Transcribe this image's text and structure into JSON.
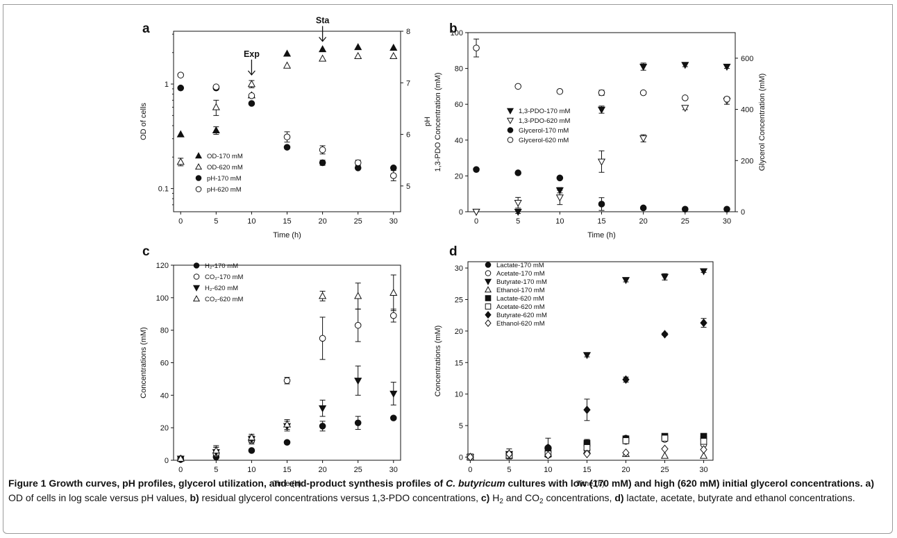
{
  "caption": {
    "title_prefix": "Figure 1 Growth curves, pH profiles, glycerol utilization, and end-product synthesis profiles of ",
    "organism": "C. butyricum",
    "title_suffix": " cultures with low (170 mM) and high (620 mM) initial glycerol concentrations.",
    "a_label": "a)",
    "a_text": " OD of cells in log scale versus pH values, ",
    "b_label": "b)",
    "b_text": " residual glycerol concentrations versus 1,3-PDO concentrations, ",
    "c_label": "c)",
    "c_text_1": " H",
    "c_sub_1": "2",
    "c_text_2": " and CO",
    "c_sub_2": "2",
    "c_text_3": " concentrations, ",
    "d_label": "d)",
    "d_text": " lactate, acetate, butyrate and ethanol concentrations."
  },
  "colors": {
    "axis": "#111111",
    "marker": "#111111",
    "frame": "#9a9a9a"
  },
  "chart_data": [
    {
      "panel": "a",
      "type": "scatter",
      "xlabel": "Time (h)",
      "ylabel": "OD of cells",
      "y2label": "pH",
      "xlim": [
        -1,
        31
      ],
      "xticks": [
        0,
        5,
        10,
        15,
        20,
        25,
        30
      ],
      "yscale": "log",
      "ylim": [
        0.06,
        3.2
      ],
      "yticks": [
        0.1,
        1
      ],
      "ytick_labels": [
        "0.1",
        "1"
      ],
      "y2lim": [
        4.5,
        8
      ],
      "y2ticks": [
        5,
        6,
        7,
        8
      ],
      "legend_position": "lower-left",
      "annotations": [
        {
          "text": "Exp",
          "x": 10,
          "y": 1.05,
          "axis": "y"
        },
        {
          "text": "Sta",
          "x": 20,
          "y": 2.2,
          "axis": "y"
        }
      ],
      "series": [
        {
          "name": "OD-170 mM",
          "marker": "triangle",
          "filled": true,
          "axis": "y",
          "x": [
            0,
            5,
            10,
            15,
            20,
            25,
            30
          ],
          "y": [
            0.33,
            0.36,
            0.78,
            1.95,
            2.15,
            2.25,
            2.22
          ],
          "err": [
            0,
            0.03,
            0,
            0,
            0,
            0,
            0
          ]
        },
        {
          "name": "OD-620 mM",
          "marker": "triangle",
          "filled": false,
          "axis": "y",
          "x": [
            0,
            5,
            10,
            15,
            20,
            25,
            30
          ],
          "y": [
            0.18,
            0.6,
            1.0,
            1.5,
            1.75,
            1.85,
            1.85
          ],
          "err": [
            0.015,
            0.1,
            0.08,
            0,
            0,
            0,
            0
          ]
        },
        {
          "name": "pH-170 mM",
          "marker": "circle",
          "filled": true,
          "axis": "y2",
          "x": [
            0,
            5,
            10,
            15,
            20,
            25,
            30
          ],
          "y": [
            6.9,
            6.9,
            6.6,
            5.75,
            5.45,
            5.35,
            5.35
          ],
          "err": [
            0,
            0,
            0,
            0,
            0.05,
            0,
            0
          ]
        },
        {
          "name": "pH-620 mM",
          "marker": "circle",
          "filled": false,
          "axis": "y2",
          "x": [
            0,
            5,
            10,
            15,
            20,
            25,
            30
          ],
          "y": [
            7.15,
            6.92,
            6.75,
            5.95,
            5.7,
            5.45,
            5.2
          ],
          "err": [
            0,
            0,
            0,
            0.1,
            0.08,
            0.05,
            0.1
          ]
        }
      ]
    },
    {
      "panel": "b",
      "type": "scatter",
      "xlabel": "Time (h)",
      "ylabel": "1,3-PDO Concentration (mM)",
      "y2label": "Glycerol Concentration (mM)",
      "xlim": [
        -1,
        31
      ],
      "xticks": [
        0,
        5,
        10,
        15,
        20,
        25,
        30
      ],
      "ylim": [
        0,
        100
      ],
      "yticks": [
        0,
        20,
        40,
        60,
        80,
        100
      ],
      "y2lim": [
        0,
        700
      ],
      "y2ticks": [
        0,
        200,
        400,
        600
      ],
      "legend_position": "center-left",
      "series": [
        {
          "name": "1,3-PDO-170 mM",
          "marker": "triangle-down",
          "filled": true,
          "axis": "y",
          "x": [
            0,
            5,
            10,
            15,
            20,
            25,
            30
          ],
          "y": [
            0,
            0,
            12,
            57,
            81,
            82,
            81
          ],
          "err": [
            0,
            1,
            1.5,
            2,
            2,
            1,
            1
          ]
        },
        {
          "name": "1,3-PDO-620 mM",
          "marker": "triangle-down",
          "filled": false,
          "axis": "y",
          "x": [
            0,
            5,
            10,
            15,
            20,
            25,
            30
          ],
          "y": [
            0,
            5,
            8,
            28,
            41,
            58,
            62
          ],
          "err": [
            0,
            3,
            4,
            6,
            2,
            1,
            2
          ]
        },
        {
          "name": "Glycerol-170 mM",
          "marker": "circle",
          "filled": true,
          "axis": "y2",
          "x": [
            0,
            5,
            10,
            15,
            20,
            25,
            30
          ],
          "y": [
            165,
            152,
            132,
            30,
            15,
            10,
            10
          ],
          "err": [
            0,
            0,
            0,
            25,
            0,
            0,
            0
          ]
        },
        {
          "name": "Glycerol-620 mM",
          "marker": "circle",
          "filled": false,
          "axis": "y2",
          "x": [
            0,
            5,
            10,
            15,
            20,
            25,
            30
          ],
          "y": [
            640,
            490,
            470,
            465,
            465,
            445,
            440
          ],
          "err": [
            35,
            5,
            0,
            10,
            0,
            0,
            0
          ]
        }
      ]
    },
    {
      "panel": "c",
      "type": "scatter",
      "xlabel": "Time (h)",
      "ylabel": "Concentrations (mM)",
      "xlim": [
        -1,
        31
      ],
      "xticks": [
        0,
        5,
        10,
        15,
        20,
        25,
        30
      ],
      "ylim": [
        0,
        120
      ],
      "yticks": [
        0,
        20,
        40,
        60,
        80,
        100,
        120
      ],
      "legend_position": "top-left",
      "series": [
        {
          "name": "H₂-170 mM",
          "marker": "circle",
          "filled": true,
          "x": [
            0,
            5,
            10,
            15,
            20,
            25,
            30
          ],
          "y": [
            0.5,
            2,
            6,
            11,
            21,
            23,
            26
          ],
          "err": [
            0,
            0,
            0,
            0,
            3,
            4,
            0
          ]
        },
        {
          "name": "CO₂-170 mM",
          "marker": "circle",
          "filled": false,
          "x": [
            0,
            5,
            10,
            15,
            20,
            25,
            30
          ],
          "y": [
            1,
            4,
            12,
            49,
            75,
            83,
            89
          ],
          "err": [
            0,
            4,
            2,
            2,
            13,
            10,
            4
          ]
        },
        {
          "name": "H₂-620 mM",
          "marker": "triangle-down",
          "filled": true,
          "x": [
            0,
            5,
            10,
            15,
            20,
            25,
            30
          ],
          "y": [
            1,
            5,
            13,
            21,
            32,
            49,
            41
          ],
          "err": [
            0,
            3,
            2,
            3,
            5,
            9,
            7
          ]
        },
        {
          "name": "CO₂-620 mM",
          "marker": "triangle",
          "filled": false,
          "x": [
            0,
            5,
            10,
            15,
            20,
            25,
            30
          ],
          "y": [
            1,
            6,
            14,
            22,
            101,
            101,
            103
          ],
          "err": [
            0,
            3,
            2,
            3,
            3,
            8,
            11
          ]
        }
      ]
    },
    {
      "panel": "d",
      "type": "scatter",
      "xlabel": "Time (h)",
      "ylabel": "Concentrations (mM)",
      "xlim": [
        -0.3,
        31.2
      ],
      "xticks": [
        0,
        5,
        10,
        15,
        20,
        25,
        30
      ],
      "ylim": [
        -0.5,
        31
      ],
      "yticks": [
        0,
        5,
        10,
        15,
        20,
        25,
        30
      ],
      "legend_position": "top-left",
      "series": [
        {
          "name": "Lactate-170 mM",
          "marker": "circle",
          "filled": true,
          "x": [
            0,
            5,
            10,
            15,
            20,
            25,
            30
          ],
          "y": [
            0,
            0.3,
            1.5,
            2.2,
            3.0,
            3.2,
            3.2
          ],
          "err": [
            0,
            0,
            0,
            0,
            0,
            0,
            0
          ]
        },
        {
          "name": "Acetate-170 mM",
          "marker": "circle",
          "filled": false,
          "x": [
            0,
            5,
            10,
            15,
            20,
            25,
            30
          ],
          "y": [
            0,
            0.3,
            0.3,
            1.2,
            2.5,
            2.8,
            2.0
          ],
          "err": [
            0,
            0,
            0,
            0,
            0,
            0,
            0
          ]
        },
        {
          "name": "Butyrate-170 mM",
          "marker": "triangle-down",
          "filled": true,
          "x": [
            0,
            5,
            10,
            15,
            20,
            25,
            30
          ],
          "y": [
            0,
            0.5,
            1.0,
            16.2,
            28.1,
            28.6,
            29.5
          ],
          "err": [
            0,
            0,
            0,
            0.3,
            0.3,
            0.5,
            0.2
          ]
        },
        {
          "name": "Ethanol-170 mM",
          "marker": "triangle",
          "filled": false,
          "x": [
            0,
            5,
            10,
            15,
            20,
            25,
            30
          ],
          "y": [
            0,
            0.2,
            0.5,
            1.0,
            0.5,
            0.2,
            0.2
          ],
          "err": [
            0,
            0,
            0,
            0,
            0,
            0,
            0
          ]
        },
        {
          "name": "Lactate-620 mM",
          "marker": "square",
          "filled": true,
          "x": [
            0,
            5,
            10,
            15,
            20,
            25,
            30
          ],
          "y": [
            0,
            0.3,
            1.2,
            2.2,
            2.9,
            3.3,
            3.3
          ],
          "err": [
            0,
            0,
            0,
            0.6,
            0,
            0,
            0
          ]
        },
        {
          "name": "Acetate-620 mM",
          "marker": "square",
          "filled": false,
          "x": [
            0,
            5,
            10,
            15,
            20,
            25,
            30
          ],
          "y": [
            0,
            0.3,
            0.5,
            1.5,
            2.6,
            3.0,
            2.5
          ],
          "err": [
            0,
            0,
            0,
            0,
            0,
            0,
            0
          ]
        },
        {
          "name": "Butyrate-620 mM",
          "marker": "diamond",
          "filled": true,
          "x": [
            0,
            5,
            10,
            15,
            20,
            25,
            30
          ],
          "y": [
            0,
            0.5,
            1.5,
            7.5,
            12.3,
            19.5,
            21.3
          ],
          "err": [
            0.5,
            0.8,
            1.5,
            1.7,
            0.4,
            0.2,
            0.7
          ]
        },
        {
          "name": "Ethanol-620 mM",
          "marker": "diamond",
          "filled": false,
          "x": [
            0,
            5,
            10,
            15,
            20,
            25,
            30
          ],
          "y": [
            0,
            0.5,
            0.3,
            0.5,
            0.7,
            1.3,
            1.2
          ],
          "err": [
            0,
            0,
            0,
            0,
            0,
            0,
            0
          ]
        }
      ]
    }
  ]
}
